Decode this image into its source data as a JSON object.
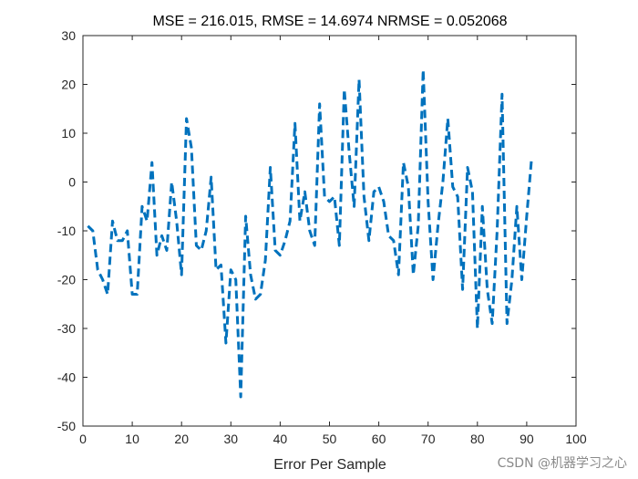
{
  "chart_data": {
    "type": "line",
    "title": "MSE = 216.015, RMSE = 14.6974 NRMSE = 0.052068",
    "xlabel": "Error Per Sample",
    "ylabel": "",
    "xlim": [
      0,
      100
    ],
    "ylim": [
      -50,
      30
    ],
    "xticks": [
      0,
      10,
      20,
      30,
      40,
      50,
      60,
      70,
      80,
      90,
      100
    ],
    "yticks": [
      30,
      20,
      10,
      0,
      -10,
      -20,
      -30,
      -40,
      -50
    ],
    "grid": false,
    "line_style": "dashed",
    "line_color": "#0072BD",
    "series": [
      {
        "x": [
          1,
          2,
          3,
          4,
          5,
          6,
          7,
          8,
          9,
          10,
          11,
          12,
          13,
          14,
          15,
          16,
          17,
          18,
          19,
          20,
          21,
          22,
          23,
          24,
          25,
          26,
          27,
          28,
          29,
          30,
          31,
          32,
          33,
          34,
          35,
          36,
          37,
          38,
          39,
          40,
          41,
          42,
          43,
          44,
          45,
          46,
          47,
          48,
          49,
          50,
          51,
          52,
          53,
          54,
          55,
          56,
          57,
          58,
          59,
          60,
          61,
          62,
          63,
          64,
          65,
          66,
          67,
          68,
          69,
          70,
          71,
          72,
          73,
          74,
          75,
          76,
          77,
          78,
          79,
          80,
          81,
          82,
          83,
          84,
          85,
          86,
          87,
          88,
          89,
          90,
          91
        ],
        "values": [
          -9,
          -10,
          -18,
          -20,
          -23,
          -8,
          -12,
          -12,
          -10,
          -23,
          -23,
          -5,
          -8,
          4,
          -15,
          -11,
          -14,
          0,
          -8,
          -19,
          13,
          7,
          -13,
          -14,
          -10,
          1,
          -18,
          -17,
          -33,
          -18,
          -20,
          -44,
          -7,
          -19,
          -24,
          -23,
          -16,
          3,
          -14,
          -15,
          -12,
          -8,
          12,
          -8,
          -2,
          -10,
          -13,
          16,
          -3,
          -4,
          -3,
          -13,
          19,
          6,
          -5,
          21,
          -3,
          -12,
          -2,
          -1,
          -4,
          -11,
          -12,
          -19,
          4,
          -1,
          -19,
          -9,
          23,
          -4,
          -20,
          -9,
          0,
          13,
          -1,
          -3,
          -22,
          3,
          -2,
          -30,
          -5,
          -22,
          -29,
          -10,
          18,
          -29,
          -20,
          -5,
          -20,
          -7,
          5
        ]
      }
    ]
  },
  "watermark": "CSDN @机器学习之心"
}
